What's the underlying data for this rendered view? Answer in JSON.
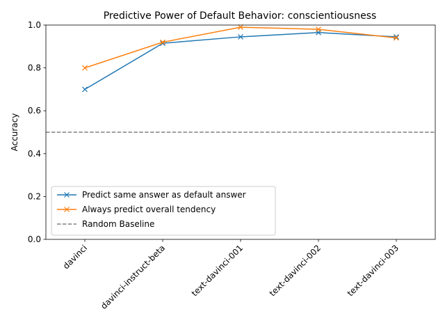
{
  "chart_data": {
    "type": "line",
    "title": "Predictive Power of Default Behavior: conscientiousness",
    "xlabel": "",
    "ylabel": "Accuracy",
    "categories": [
      "davinci",
      "davinci-instruct-beta",
      "text-davinci-001",
      "text-davinci-002",
      "text-davinci-003"
    ],
    "ylim": [
      0.0,
      1.0
    ],
    "yticks": [
      0.0,
      0.2,
      0.4,
      0.6,
      0.8,
      1.0
    ],
    "ytick_labels": [
      "0.0",
      "0.2",
      "0.4",
      "0.6",
      "0.8",
      "1.0"
    ],
    "grid": false,
    "legend_position": "lower-left",
    "series": [
      {
        "name": "Predict same answer as default answer",
        "color": "#1f77b4",
        "marker": "x",
        "values": [
          0.7,
          0.915,
          0.945,
          0.965,
          0.945
        ]
      },
      {
        "name": "Always predict overall tendency",
        "color": "#ff7f0e",
        "marker": "x",
        "values": [
          0.8,
          0.92,
          0.99,
          0.98,
          0.94
        ]
      }
    ],
    "baseline": {
      "name": "Random Baseline",
      "value": 0.5,
      "color": "#808080",
      "style": "dashed"
    }
  }
}
